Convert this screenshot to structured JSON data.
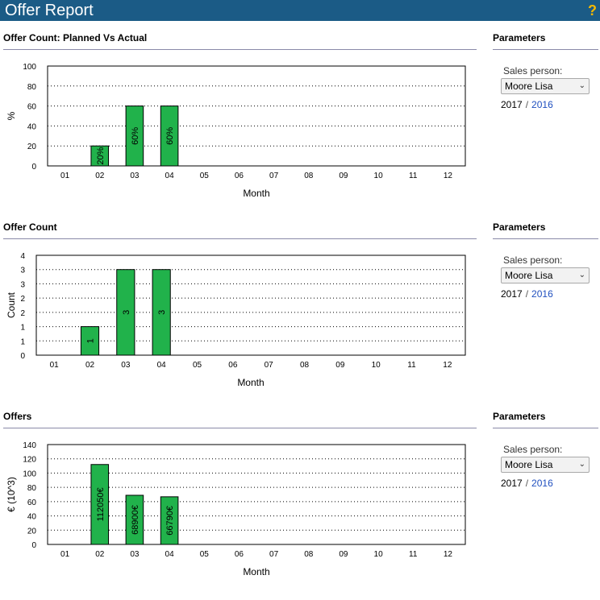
{
  "app": {
    "title": "Offer Report",
    "help_label": "?"
  },
  "parameters": {
    "title": "Parameters",
    "salesperson_label": "Sales person:",
    "salesperson_value": "Moore Lisa",
    "year_current": "2017",
    "year_separator": "/",
    "year_link": "2016"
  },
  "sections": [
    {
      "title": "Offer Count: Planned Vs Actual"
    },
    {
      "title": "Offer Count"
    },
    {
      "title": "Offers"
    }
  ],
  "colors": {
    "header_bg": "#1b5b86",
    "bar_fill": "#21b24b",
    "help": "#f5b800",
    "link": "#1f4fbf"
  },
  "chart_data": [
    {
      "type": "bar",
      "title": "Offer Count: Planned Vs Actual",
      "xlabel": "Month",
      "ylabel": "%",
      "categories": [
        "01",
        "02",
        "03",
        "04",
        "05",
        "06",
        "07",
        "08",
        "09",
        "10",
        "11",
        "12"
      ],
      "values": [
        0,
        20,
        60,
        60,
        0,
        0,
        0,
        0,
        0,
        0,
        0,
        0
      ],
      "data_labels": [
        "",
        "20%",
        "60%",
        "60%",
        "",
        "",
        "",
        "",
        "",
        "",
        "",
        ""
      ],
      "ylim": [
        0,
        100
      ],
      "yticks": [
        "0",
        "20",
        "40",
        "60",
        "80",
        "100"
      ],
      "grid": true
    },
    {
      "type": "bar",
      "title": "Offer Count",
      "xlabel": "Month",
      "ylabel": "Count",
      "categories": [
        "01",
        "02",
        "03",
        "04",
        "05",
        "06",
        "07",
        "08",
        "09",
        "10",
        "11",
        "12"
      ],
      "values": [
        0,
        1,
        3,
        3,
        0,
        0,
        0,
        0,
        0,
        0,
        0,
        0
      ],
      "data_labels": [
        "",
        "1",
        "3",
        "3",
        "",
        "",
        "",
        "",
        "",
        "",
        "",
        ""
      ],
      "ylim": [
        0,
        3.5
      ],
      "yticks": [
        "0",
        "1",
        "1",
        "2",
        "2",
        "3",
        "3",
        "4"
      ],
      "grid": true
    },
    {
      "type": "bar",
      "title": "Offers",
      "xlabel": "Month",
      "ylabel": "€ (10^3)",
      "categories": [
        "01",
        "02",
        "03",
        "04",
        "05",
        "06",
        "07",
        "08",
        "09",
        "10",
        "11",
        "12"
      ],
      "values": [
        0,
        112.05,
        68.9,
        66.79,
        0,
        0,
        0,
        0,
        0,
        0,
        0,
        0
      ],
      "data_labels": [
        "",
        "112050€",
        "68900€",
        "66790€",
        "",
        "",
        "",
        "",
        "",
        "",
        "",
        ""
      ],
      "ylim": [
        0,
        140
      ],
      "yticks": [
        "0",
        "20",
        "40",
        "60",
        "80",
        "100",
        "120",
        "140"
      ],
      "grid": true
    }
  ]
}
